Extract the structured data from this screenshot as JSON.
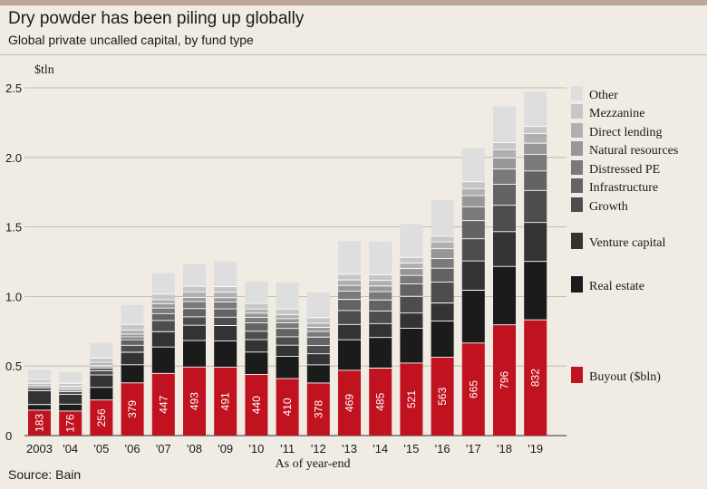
{
  "header": {
    "title": "Dry powder has been piling up globally",
    "subtitle": "Global private uncalled capital, by fund type"
  },
  "footer": {
    "source": "Source: Bain"
  },
  "chart_data": {
    "type": "bar",
    "stacked": true,
    "title": "Dry powder has been piling up globally",
    "subtitle": "Global private uncalled capital, by fund type",
    "ylabel": "$tln",
    "xlabel": "As of year-end",
    "ylim": [
      0,
      2.5
    ],
    "yticks": [
      "0",
      "0.5",
      "1.0",
      "1.5",
      "2.0",
      "2.5"
    ],
    "ytick_values": [
      0,
      0.5,
      1.0,
      1.5,
      2.0,
      2.5
    ],
    "categories": [
      "2003",
      "'04",
      "'05",
      "'06",
      "'07",
      "'08",
      "'09",
      "'10",
      "'11",
      "'12",
      "'13",
      "'14",
      "'15",
      "'16",
      "'17",
      "'18",
      "'19"
    ],
    "buyout_labels": [
      "183",
      "176",
      "256",
      "379",
      "447",
      "493",
      "491",
      "440",
      "410",
      "378",
      "469",
      "485",
      "521",
      "563",
      "665",
      "796",
      "832"
    ],
    "series": [
      {
        "name": "Buyout ($bln)",
        "color": "#c1121f",
        "values": [
          0.183,
          0.176,
          0.256,
          0.379,
          0.447,
          0.493,
          0.491,
          0.44,
          0.41,
          0.378,
          0.469,
          0.485,
          0.521,
          0.563,
          0.665,
          0.796,
          0.832
        ]
      },
      {
        "name": "Real estate",
        "color": "#1b1b1b",
        "values": [
          0.04,
          0.05,
          0.09,
          0.13,
          0.19,
          0.19,
          0.19,
          0.16,
          0.16,
          0.13,
          0.22,
          0.22,
          0.25,
          0.26,
          0.38,
          0.42,
          0.42
        ]
      },
      {
        "name": "Venture capital",
        "color": "#333333",
        "values": [
          0.1,
          0.07,
          0.09,
          0.09,
          0.11,
          0.11,
          0.11,
          0.09,
          0.08,
          0.08,
          0.11,
          0.1,
          0.11,
          0.13,
          0.21,
          0.25,
          0.28
        ]
      },
      {
        "name": "Growth",
        "color": "#4d4d4d",
        "values": [
          0.02,
          0.02,
          0.03,
          0.05,
          0.08,
          0.06,
          0.06,
          0.06,
          0.06,
          0.06,
          0.1,
          0.09,
          0.12,
          0.15,
          0.16,
          0.19,
          0.23
        ]
      },
      {
        "name": "Infrastructure",
        "color": "#636363",
        "values": [
          0.01,
          0.01,
          0.02,
          0.04,
          0.05,
          0.06,
          0.06,
          0.06,
          0.06,
          0.06,
          0.08,
          0.08,
          0.09,
          0.1,
          0.13,
          0.15,
          0.14
        ]
      },
      {
        "name": "Distressed PE",
        "color": "#7a7a7a",
        "values": [
          0.01,
          0.01,
          0.01,
          0.02,
          0.04,
          0.05,
          0.05,
          0.04,
          0.04,
          0.04,
          0.06,
          0.06,
          0.06,
          0.07,
          0.1,
          0.11,
          0.12
        ]
      },
      {
        "name": "Natural resources",
        "color": "#979797",
        "values": [
          0.01,
          0.01,
          0.01,
          0.02,
          0.03,
          0.03,
          0.03,
          0.03,
          0.03,
          0.03,
          0.04,
          0.04,
          0.05,
          0.07,
          0.08,
          0.08,
          0.08
        ]
      },
      {
        "name": "Direct lending",
        "color": "#b0b0b0",
        "values": [
          0.01,
          0.01,
          0.02,
          0.03,
          0.03,
          0.04,
          0.04,
          0.03,
          0.03,
          0.03,
          0.04,
          0.04,
          0.04,
          0.05,
          0.05,
          0.06,
          0.07
        ]
      },
      {
        "name": "Mezzanine",
        "color": "#c6c6c6",
        "values": [
          0.02,
          0.02,
          0.03,
          0.04,
          0.04,
          0.04,
          0.04,
          0.04,
          0.04,
          0.04,
          0.04,
          0.04,
          0.04,
          0.04,
          0.05,
          0.05,
          0.05
        ]
      },
      {
        "name": "Other",
        "color": "#dedede",
        "values": [
          0.07,
          0.08,
          0.11,
          0.14,
          0.15,
          0.16,
          0.18,
          0.16,
          0.19,
          0.18,
          0.24,
          0.24,
          0.24,
          0.26,
          0.24,
          0.26,
          0.25
        ]
      }
    ],
    "legend_order": [
      "Other",
      "Mezzanine",
      "Direct lending",
      "Natural resources",
      "Distressed PE",
      "Infrastructure",
      "Growth",
      "Venture capital",
      "Real estate",
      "Buyout ($bln)"
    ],
    "legend_position": "right"
  }
}
